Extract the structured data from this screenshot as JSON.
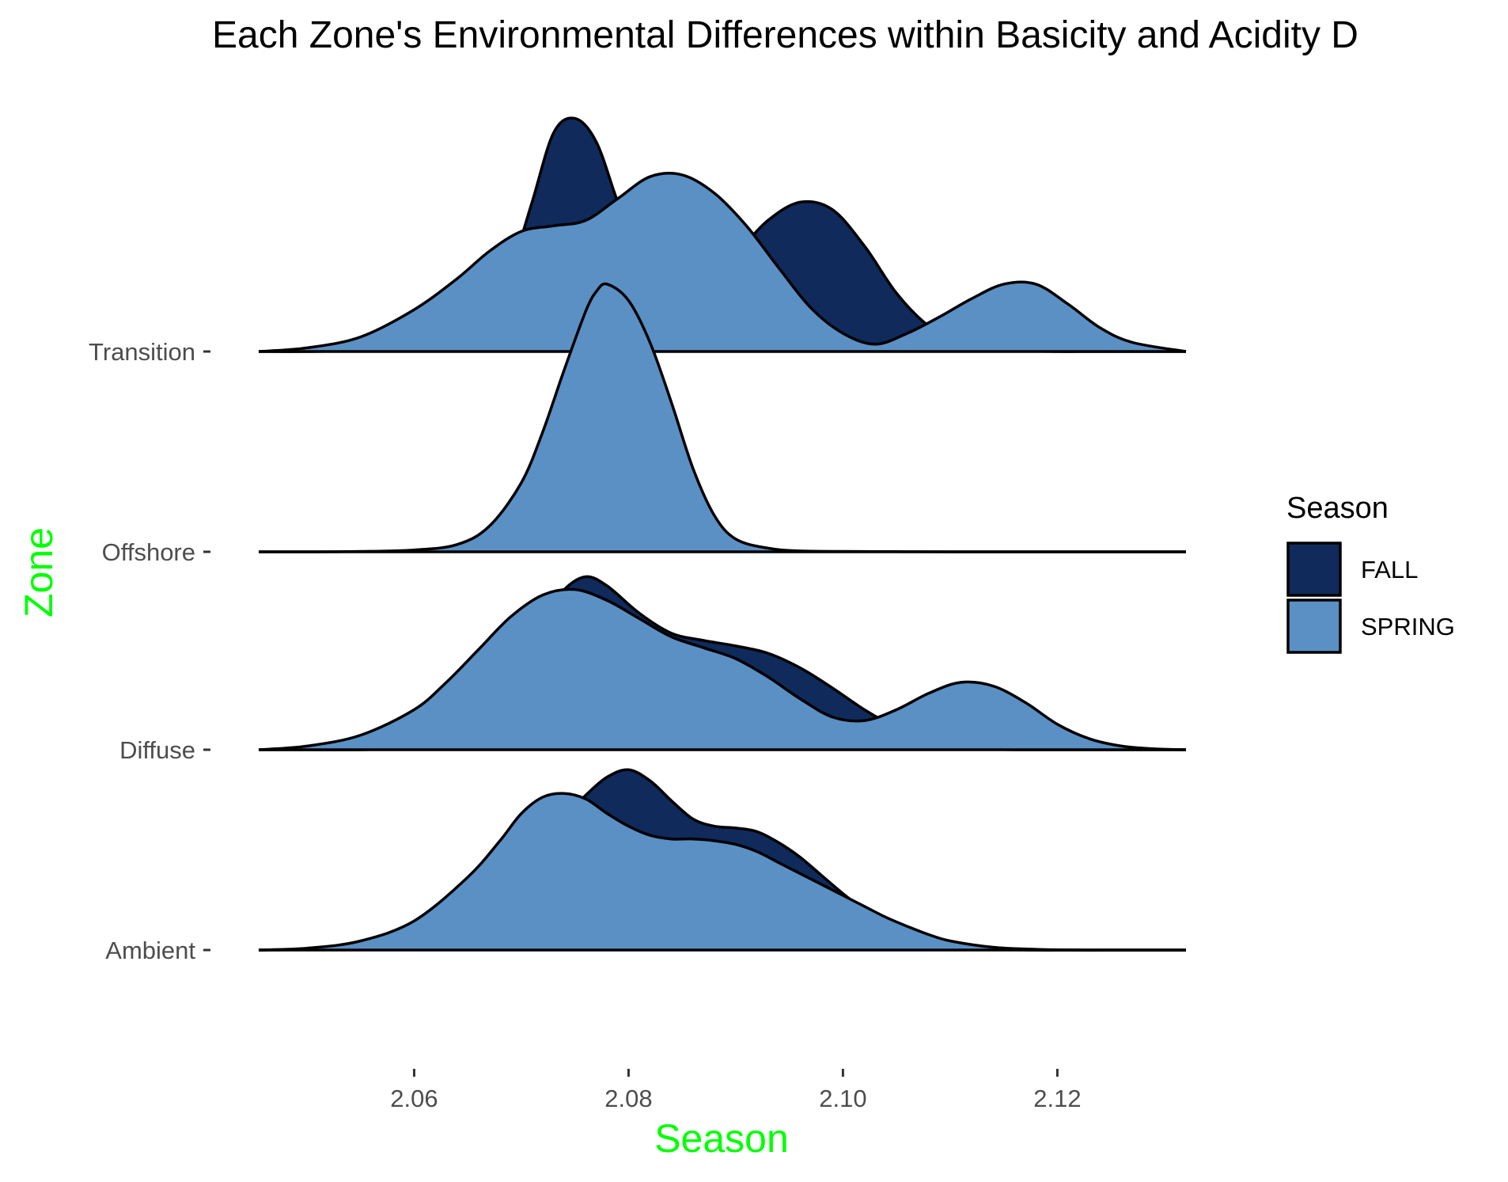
{
  "chart_data": {
    "type": "ridgeline",
    "title": "Each Zone's Environmental Differences within Basicity and Acidity D",
    "xlabel": "Season",
    "ylabel": "Zone",
    "axis_title_color": "#00ff00",
    "x_ticks": [
      2.06,
      2.08,
      2.1,
      2.12
    ],
    "x_tick_labels": [
      "2.06",
      "2.08",
      "2.10",
      "2.12"
    ],
    "xlim": [
      2.0455,
      2.132
    ],
    "zones": [
      "Ambient",
      "Diffuse",
      "Offshore",
      "Transition"
    ],
    "legend": {
      "title": "Season",
      "position": "right",
      "entries": [
        {
          "label": "FALL",
          "color": "#102a5c"
        },
        {
          "label": "SPRING",
          "color": "#5b90c5"
        }
      ]
    },
    "series": [
      {
        "zone": "Ambient",
        "season": "SPRING",
        "x": [
          2.0455,
          2.05,
          2.055,
          2.06,
          2.065,
          2.068,
          2.07,
          2.072,
          2.074,
          2.076,
          2.078,
          2.08,
          2.082,
          2.084,
          2.086,
          2.088,
          2.09,
          2.092,
          2.094,
          2.096,
          2.098,
          2.1,
          2.102,
          2.104,
          2.106,
          2.108,
          2.11,
          2.114,
          2.118,
          2.122,
          2.126,
          2.132
        ],
        "density": [
          0.0,
          0.01,
          0.05,
          0.16,
          0.4,
          0.6,
          0.75,
          0.84,
          0.86,
          0.83,
          0.75,
          0.68,
          0.63,
          0.61,
          0.61,
          0.6,
          0.58,
          0.54,
          0.48,
          0.42,
          0.36,
          0.3,
          0.24,
          0.18,
          0.13,
          0.085,
          0.05,
          0.015,
          0.004,
          0.0,
          0.0,
          0.0
        ]
      },
      {
        "zone": "Ambient",
        "season": "FALL",
        "x": [
          2.0455,
          2.05,
          2.055,
          2.06,
          2.065,
          2.068,
          2.07,
          2.072,
          2.074,
          2.076,
          2.078,
          2.08,
          2.082,
          2.084,
          2.086,
          2.088,
          2.09,
          2.092,
          2.094,
          2.096,
          2.098,
          2.1,
          2.102,
          2.104,
          2.106,
          2.108,
          2.11,
          2.114,
          2.118,
          2.122,
          2.126,
          2.132
        ],
        "density": [
          0.0,
          0.005,
          0.03,
          0.1,
          0.25,
          0.4,
          0.52,
          0.63,
          0.73,
          0.85,
          0.95,
          0.99,
          0.93,
          0.82,
          0.72,
          0.68,
          0.67,
          0.65,
          0.59,
          0.51,
          0.41,
          0.31,
          0.22,
          0.14,
          0.08,
          0.045,
          0.02,
          0.004,
          0.0,
          0.0,
          0.0,
          0.0
        ]
      },
      {
        "zone": "Diffuse",
        "season": "SPRING",
        "x": [
          2.0455,
          2.05,
          2.055,
          2.06,
          2.063,
          2.066,
          2.069,
          2.072,
          2.075,
          2.078,
          2.081,
          2.084,
          2.087,
          2.09,
          2.093,
          2.096,
          2.099,
          2.102,
          2.105,
          2.108,
          2.111,
          2.114,
          2.117,
          2.12,
          2.123,
          2.126,
          2.129,
          2.132
        ],
        "density": [
          0.0,
          0.02,
          0.08,
          0.22,
          0.37,
          0.55,
          0.73,
          0.85,
          0.88,
          0.82,
          0.72,
          0.62,
          0.56,
          0.5,
          0.4,
          0.28,
          0.18,
          0.16,
          0.22,
          0.31,
          0.37,
          0.35,
          0.26,
          0.14,
          0.06,
          0.02,
          0.005,
          0.0
        ]
      },
      {
        "zone": "Diffuse",
        "season": "FALL",
        "x": [
          2.0455,
          2.05,
          2.055,
          2.06,
          2.063,
          2.066,
          2.069,
          2.072,
          2.074,
          2.076,
          2.078,
          2.081,
          2.084,
          2.087,
          2.09,
          2.093,
          2.096,
          2.099,
          2.102,
          2.105,
          2.108,
          2.111,
          2.114,
          2.117,
          2.12,
          2.123,
          2.126,
          2.129,
          2.132
        ],
        "density": [
          0.0,
          0.0,
          0.0,
          0.01,
          0.05,
          0.18,
          0.42,
          0.72,
          0.88,
          0.95,
          0.9,
          0.75,
          0.64,
          0.6,
          0.57,
          0.53,
          0.45,
          0.34,
          0.22,
          0.12,
          0.05,
          0.015,
          0.003,
          0.0,
          0.0,
          0.0,
          0.0,
          0.0,
          0.0
        ]
      },
      {
        "zone": "Offshore",
        "season": "SPRING",
        "x": [
          2.0455,
          2.05,
          2.055,
          2.06,
          2.064,
          2.067,
          2.07,
          2.072,
          2.074,
          2.076,
          2.077,
          2.078,
          2.08,
          2.082,
          2.084,
          2.086,
          2.088,
          2.09,
          2.093,
          2.096,
          2.1,
          2.105,
          2.11,
          2.12,
          2.132
        ],
        "density": [
          0.0,
          0.0,
          0.002,
          0.01,
          0.04,
          0.14,
          0.38,
          0.66,
          1.0,
          1.32,
          1.43,
          1.47,
          1.38,
          1.15,
          0.82,
          0.46,
          0.2,
          0.07,
          0.02,
          0.005,
          0.002,
          0.001,
          0.0,
          0.0,
          0.0
        ]
      },
      {
        "zone": "Transition",
        "season": "SPRING",
        "x": [
          2.0455,
          2.05,
          2.055,
          2.06,
          2.064,
          2.067,
          2.07,
          2.073,
          2.076,
          2.079,
          2.082,
          2.085,
          2.088,
          2.091,
          2.094,
          2.097,
          2.1,
          2.103,
          2.106,
          2.109,
          2.112,
          2.115,
          2.118,
          2.121,
          2.124,
          2.127,
          2.132
        ],
        "density": [
          0.0,
          0.02,
          0.08,
          0.23,
          0.4,
          0.55,
          0.66,
          0.69,
          0.72,
          0.84,
          0.96,
          0.97,
          0.87,
          0.69,
          0.46,
          0.24,
          0.1,
          0.04,
          0.1,
          0.19,
          0.29,
          0.37,
          0.37,
          0.26,
          0.13,
          0.05,
          0.0
        ]
      },
      {
        "zone": "Transition",
        "season": "FALL",
        "x": [
          2.0455,
          2.05,
          2.055,
          2.06,
          2.064,
          2.067,
          2.069,
          2.071,
          2.073,
          2.075,
          2.077,
          2.079,
          2.081,
          2.084,
          2.087,
          2.09,
          2.093,
          2.096,
          2.099,
          2.102,
          2.105,
          2.108,
          2.111,
          2.114,
          2.117,
          2.12,
          2.124,
          2.132
        ],
        "density": [
          0.0,
          0.0,
          0.005,
          0.02,
          0.08,
          0.22,
          0.45,
          0.82,
          1.2,
          1.28,
          1.15,
          0.82,
          0.54,
          0.4,
          0.42,
          0.54,
          0.72,
          0.82,
          0.78,
          0.58,
          0.32,
          0.14,
          0.05,
          0.015,
          0.004,
          0.0,
          0.0,
          0.0
        ]
      }
    ]
  }
}
